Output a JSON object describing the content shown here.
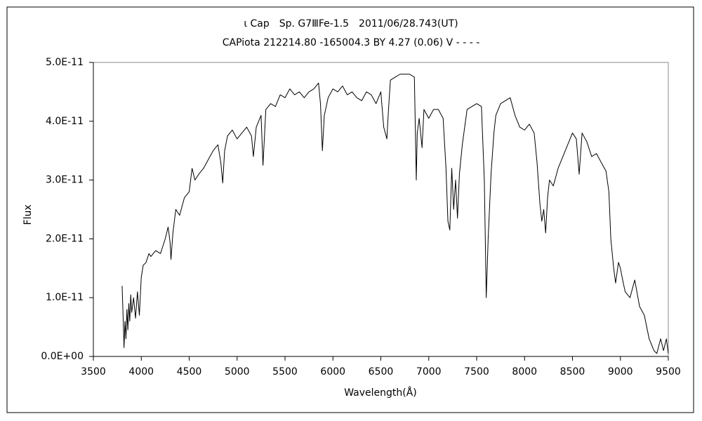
{
  "chart_data": {
    "type": "line",
    "title": "ι Cap　Sp. G7ⅢFe-1.5　2011/06/28.743(UT)",
    "subtitle": "CAPiota 212214.80 -165004.3 BY 4.27 (0.06) V - - - -",
    "x_label": "Wavelength(Å)",
    "y_label": "Flux",
    "color": "#000000",
    "xlim": [
      3500,
      9500
    ],
    "xticks": [
      3500,
      4000,
      4500,
      5000,
      5500,
      6000,
      6500,
      7000,
      7500,
      8000,
      8500,
      9000,
      9500
    ],
    "ylim": [
      0,
      5e-11
    ],
    "yticks": [
      {
        "value": 0,
        "label": "0.0E+00"
      },
      {
        "value": 1e-11,
        "label": "1.0E-11"
      },
      {
        "value": 2e-11,
        "label": "2.0E-11"
      },
      {
        "value": 3e-11,
        "label": "3.0E-11"
      },
      {
        "value": 4e-11,
        "label": "4.0E-11"
      },
      {
        "value": 5e-11,
        "label": "5.0E-11"
      }
    ],
    "grid": false,
    "x": [
      3800,
      3810,
      3820,
      3830,
      3840,
      3850,
      3860,
      3870,
      3880,
      3890,
      3900,
      3920,
      3940,
      3960,
      3980,
      4000,
      4020,
      4050,
      4080,
      4100,
      4150,
      4200,
      4250,
      4280,
      4300,
      4310,
      4330,
      4360,
      4400,
      4450,
      4500,
      4530,
      4560,
      4600,
      4650,
      4700,
      4750,
      4800,
      4830,
      4850,
      4870,
      4900,
      4950,
      5000,
      5050,
      5100,
      5150,
      5170,
      5200,
      5250,
      5270,
      5300,
      5350,
      5400,
      5450,
      5500,
      5550,
      5600,
      5650,
      5700,
      5750,
      5800,
      5850,
      5870,
      5890,
      5910,
      5950,
      6000,
      6050,
      6100,
      6150,
      6200,
      6250,
      6300,
      6350,
      6400,
      6450,
      6500,
      6530,
      6563,
      6580,
      6600,
      6650,
      6700,
      6750,
      6800,
      6850,
      6870,
      6880,
      6900,
      6930,
      6950,
      7000,
      7050,
      7100,
      7150,
      7180,
      7200,
      7220,
      7240,
      7260,
      7280,
      7300,
      7320,
      7350,
      7400,
      7450,
      7500,
      7550,
      7580,
      7600,
      7610,
      7620,
      7650,
      7680,
      7700,
      7750,
      7800,
      7850,
      7900,
      7950,
      8000,
      8050,
      8100,
      8130,
      8160,
      8180,
      8200,
      8220,
      8240,
      8260,
      8300,
      8350,
      8400,
      8450,
      8500,
      8540,
      8570,
      8600,
      8650,
      8700,
      8750,
      8800,
      8850,
      8880,
      8900,
      8930,
      8950,
      8980,
      9000,
      9030,
      9050,
      9100,
      9150,
      9200,
      9250,
      9300,
      9350,
      9380,
      9420,
      9450,
      9480,
      9500
    ],
    "values": [
      1.2e-11,
      7e-12,
      1.5e-12,
      6e-12,
      3e-12,
      8e-12,
      4.5e-12,
      9e-12,
      6e-12,
      1.05e-11,
      7.5e-12,
      1e-11,
      6.5e-12,
      1.1e-11,
      7e-12,
      1.35e-11,
      1.55e-11,
      1.6e-11,
      1.75e-11,
      1.7e-11,
      1.8e-11,
      1.75e-11,
      2e-11,
      2.2e-11,
      1.95e-11,
      1.65e-11,
      2.1e-11,
      2.5e-11,
      2.4e-11,
      2.7e-11,
      2.8e-11,
      3.2e-11,
      3e-11,
      3.1e-11,
      3.2e-11,
      3.35e-11,
      3.5e-11,
      3.6e-11,
      3.3e-11,
      2.95e-11,
      3.5e-11,
      3.75e-11,
      3.85e-11,
      3.7e-11,
      3.8e-11,
      3.9e-11,
      3.75e-11,
      3.4e-11,
      3.9e-11,
      4.1e-11,
      3.25e-11,
      4.2e-11,
      4.3e-11,
      4.25e-11,
      4.45e-11,
      4.4e-11,
      4.55e-11,
      4.45e-11,
      4.5e-11,
      4.4e-11,
      4.5e-11,
      4.55e-11,
      4.65e-11,
      4.3e-11,
      3.5e-11,
      4.1e-11,
      4.4e-11,
      4.55e-11,
      4.5e-11,
      4.6e-11,
      4.45e-11,
      4.5e-11,
      4.4e-11,
      4.35e-11,
      4.5e-11,
      4.45e-11,
      4.3e-11,
      4.5e-11,
      3.9e-11,
      3.7e-11,
      4.2e-11,
      4.7e-11,
      4.75e-11,
      4.8e-11,
      4.8e-11,
      4.8e-11,
      4.75e-11,
      3e-11,
      3.8e-11,
      4.05e-11,
      3.55e-11,
      4.2e-11,
      4.05e-11,
      4.2e-11,
      4.2e-11,
      4.05e-11,
      3.2e-11,
      2.3e-11,
      2.15e-11,
      3.2e-11,
      2.5e-11,
      3e-11,
      2.35e-11,
      3.1e-11,
      3.6e-11,
      4.2e-11,
      4.25e-11,
      4.3e-11,
      4.25e-11,
      3e-11,
      1e-11,
      1.5e-11,
      2e-11,
      3.1e-11,
      3.8e-11,
      4.1e-11,
      4.3e-11,
      4.35e-11,
      4.4e-11,
      4.1e-11,
      3.9e-11,
      3.85e-11,
      3.95e-11,
      3.8e-11,
      3.3e-11,
      2.6e-11,
      2.3e-11,
      2.5e-11,
      2.1e-11,
      2.7e-11,
      3e-11,
      2.9e-11,
      3.2e-11,
      3.4e-11,
      3.6e-11,
      3.8e-11,
      3.7e-11,
      3.1e-11,
      3.8e-11,
      3.65e-11,
      3.4e-11,
      3.45e-11,
      3.3e-11,
      3.15e-11,
      2.8e-11,
      2e-11,
      1.5e-11,
      1.25e-11,
      1.6e-11,
      1.5e-11,
      1.25e-11,
      1.1e-11,
      1e-11,
      1.3e-11,
      8.5e-12,
      7e-12,
      3e-12,
      1e-12,
      5e-13,
      3e-12,
      1e-12,
      3e-12,
      5e-13
    ]
  }
}
